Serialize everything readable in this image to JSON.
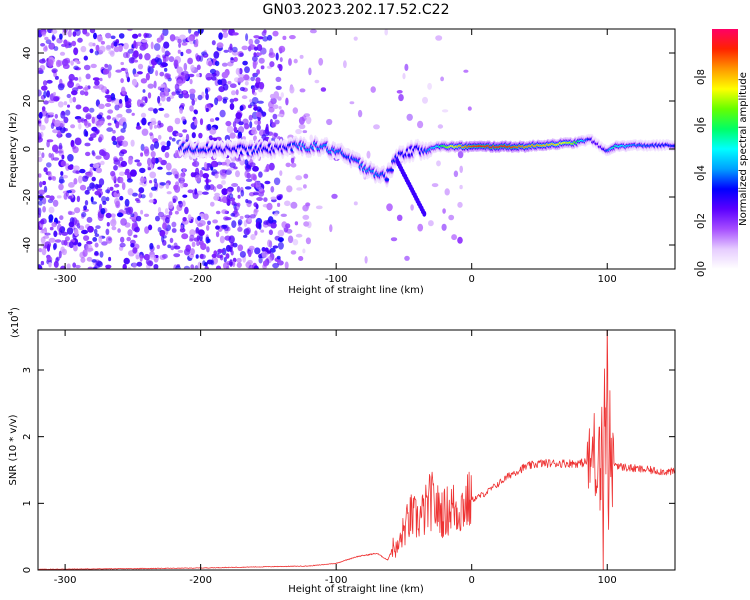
{
  "title": "GN03.2023.202.17.52.C22",
  "chart_data": [
    {
      "type": "heatmap",
      "xlabel": "Height of straight line (km)",
      "ylabel": "Frequency (Hz)",
      "xlim": [
        -320,
        150
      ],
      "ylim": [
        -50,
        50
      ],
      "x_ticks": [
        -300,
        -200,
        -100,
        0,
        100
      ],
      "y_ticks": [
        -40,
        -20,
        0,
        20,
        40
      ],
      "grid": false,
      "colorbar": {
        "label": "Normalized spectral amplitude",
        "range": [
          0,
          1
        ],
        "ticks": [
          "0.0",
          "0.2",
          "0.4",
          "0.6",
          "0.8"
        ],
        "colors": [
          "#ffffff",
          "#e6ccff",
          "#a64dff",
          "#5b00ff",
          "#0000ff",
          "#00a0ff",
          "#00ffff",
          "#00ff66",
          "#66ff00",
          "#ffff00",
          "#ff9900",
          "#ff2200",
          "#ff0066"
        ]
      },
      "signal_track": [
        {
          "x": -215,
          "y": 0.5,
          "amp": 0.35
        },
        {
          "x": -200,
          "y": 0.5,
          "amp": 0.35
        },
        {
          "x": -180,
          "y": 0,
          "amp": 0.3
        },
        {
          "x": -160,
          "y": -0.5,
          "amp": 0.35
        },
        {
          "x": -140,
          "y": 0.5,
          "amp": 0.3
        },
        {
          "x": -125,
          "y": 1,
          "amp": 0.4
        },
        {
          "x": -110,
          "y": 1,
          "amp": 0.4
        },
        {
          "x": -100,
          "y": -1,
          "amp": 0.4
        },
        {
          "x": -90,
          "y": -4,
          "amp": 0.35
        },
        {
          "x": -80,
          "y": -7,
          "amp": 0.4
        },
        {
          "x": -70,
          "y": -10,
          "amp": 0.4
        },
        {
          "x": -63,
          "y": -12,
          "amp": 0.35
        },
        {
          "x": -55,
          "y": -3,
          "amp": 0.35
        },
        {
          "x": -45,
          "y": -1,
          "amp": 0.3
        },
        {
          "x": -35,
          "y": 0,
          "amp": 0.35
        },
        {
          "x": -25,
          "y": 1,
          "amp": 0.5
        },
        {
          "x": -15,
          "y": 1,
          "amp": 0.75
        },
        {
          "x": 0,
          "y": 1,
          "amp": 0.9
        },
        {
          "x": 20,
          "y": 1,
          "amp": 0.95
        },
        {
          "x": 40,
          "y": 1,
          "amp": 0.85
        },
        {
          "x": 60,
          "y": 2,
          "amp": 0.8
        },
        {
          "x": 75,
          "y": 2.5,
          "amp": 0.7
        },
        {
          "x": 88,
          "y": 4,
          "amp": 0.3
        },
        {
          "x": 95,
          "y": 1,
          "amp": 0.25
        },
        {
          "x": 100,
          "y": -1,
          "amp": 0.35
        },
        {
          "x": 105,
          "y": 1,
          "amp": 0.55
        },
        {
          "x": 120,
          "y": 1.5,
          "amp": 0.4
        },
        {
          "x": 140,
          "y": 1.5,
          "amp": 0.35
        },
        {
          "x": 150,
          "y": 1.5,
          "amp": 0.35
        }
      ]
    },
    {
      "type": "line",
      "xlabel": "Height of straight line (km)",
      "ylabel": "SNR (10 * v/v)",
      "y_multiplier": "(x10",
      "y_multiplier_exp": "4",
      "y_multiplier_close": ")",
      "xlim": [
        -320,
        150
      ],
      "ylim": [
        0,
        3.6
      ],
      "x_ticks": [
        -300,
        -200,
        -100,
        0,
        100
      ],
      "y_ticks": [
        0,
        1,
        2,
        3
      ],
      "grid": false,
      "line_color": "#ee3333",
      "series": [
        {
          "x": [
            -320,
            -250,
            -200,
            -150,
            -120,
            -100,
            -85,
            -70,
            -62,
            -58,
            -55,
            -50,
            -45,
            -40,
            -35,
            -30,
            -25,
            -20,
            -15,
            -10,
            -5,
            0,
            10,
            20,
            30,
            40,
            50,
            60,
            70,
            80,
            85,
            88,
            90,
            92,
            94,
            95,
            96,
            97,
            98,
            99,
            100,
            101,
            102,
            103,
            105,
            110,
            120,
            130,
            140,
            150
          ],
          "y": [
            0.01,
            0.02,
            0.03,
            0.05,
            0.06,
            0.1,
            0.2,
            0.25,
            0.15,
            0.35,
            0.3,
            0.6,
            0.8,
            0.75,
            0.85,
            1.05,
            0.9,
            0.85,
            0.95,
            0.9,
            1.0,
            1.05,
            1.15,
            1.3,
            1.45,
            1.55,
            1.6,
            1.6,
            1.6,
            1.6,
            1.62,
            1.55,
            2.0,
            1.3,
            2.4,
            1.0,
            2.5,
            0.2,
            3.0,
            1.5,
            3.6,
            0.4,
            2.2,
            1.4,
            1.6,
            1.55,
            1.52,
            1.5,
            1.48,
            1.47
          ]
        }
      ]
    }
  ]
}
